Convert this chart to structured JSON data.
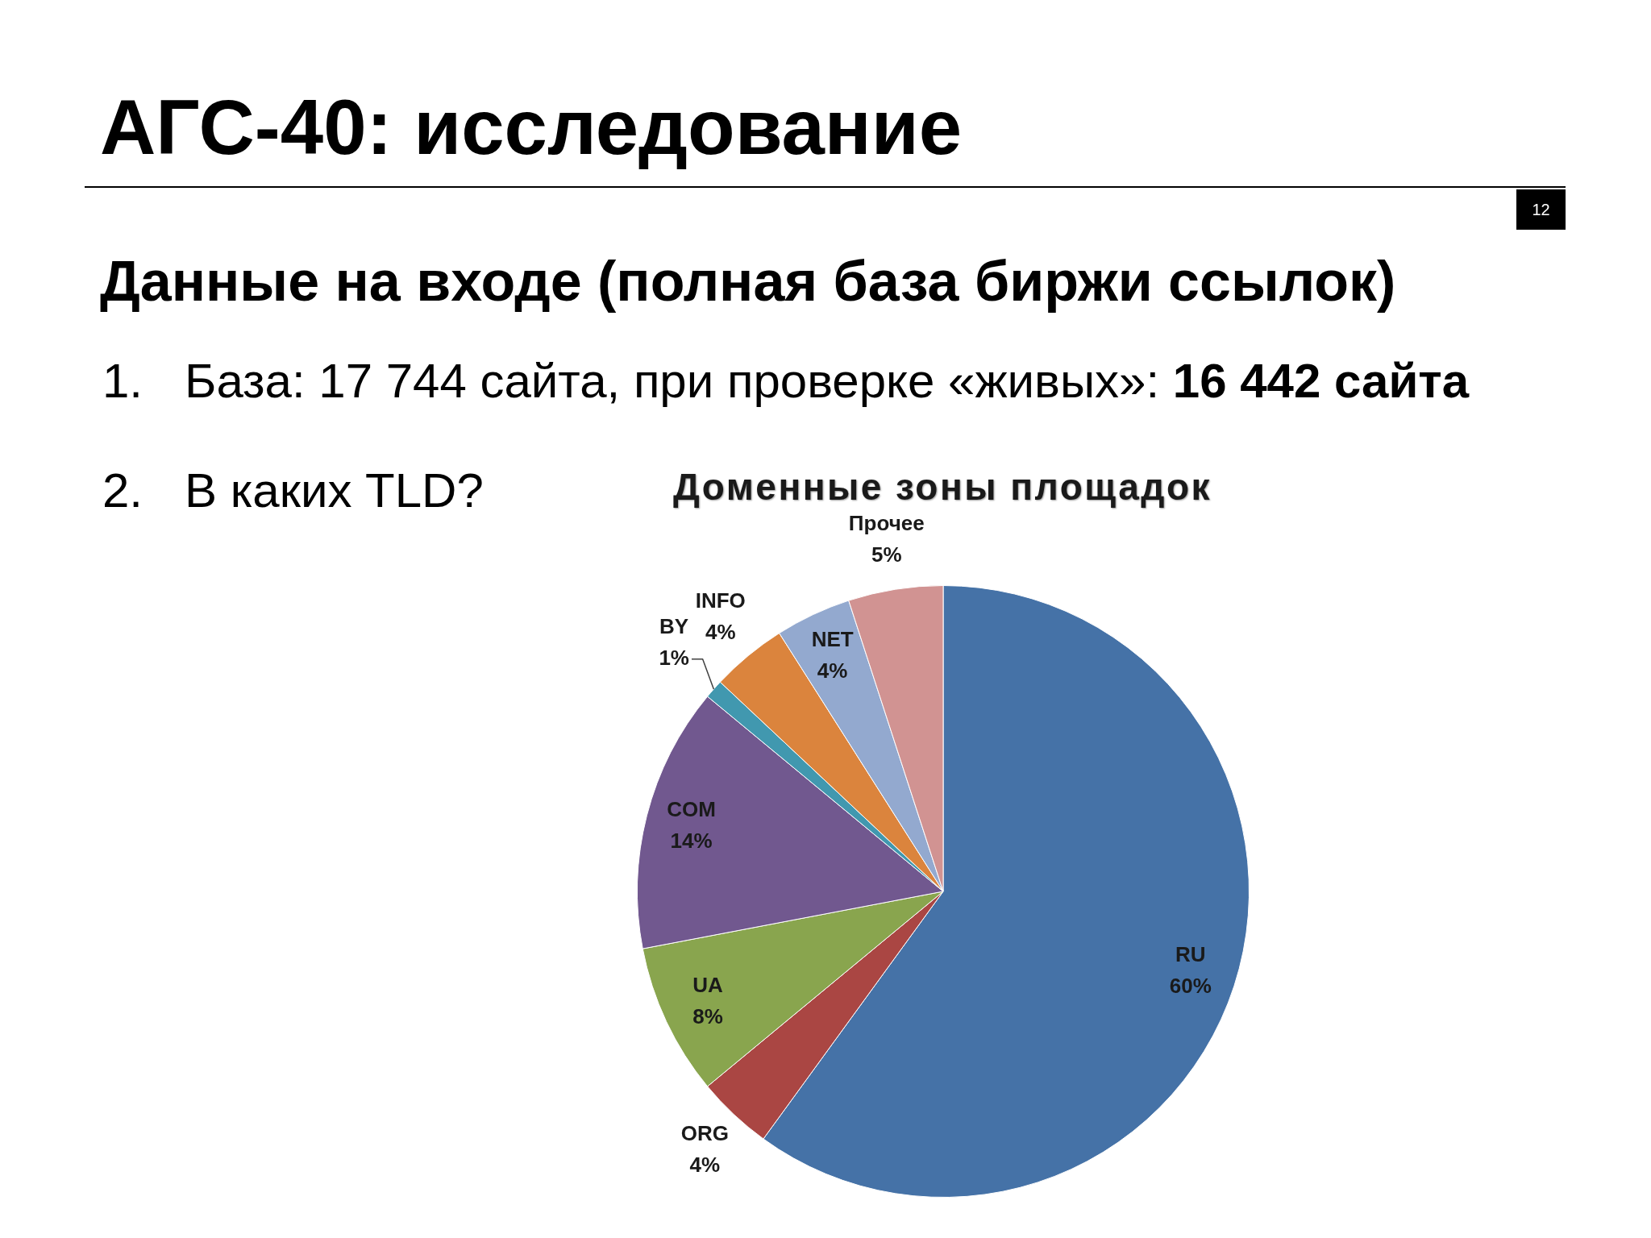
{
  "chart_data": {
    "type": "pie",
    "title": "Доменные зоны площадок",
    "categories": [
      "RU",
      "ORG",
      "UA",
      "COM",
      "BY",
      "INFO",
      "NET",
      "Прочее"
    ],
    "values": [
      60,
      4,
      8,
      14,
      1,
      4,
      4,
      5
    ],
    "colors": [
      "#4572a7",
      "#aa4643",
      "#89a54e",
      "#71588f",
      "#4198af",
      "#db843d",
      "#93a9cf",
      "#d19392"
    ],
    "value_labels": [
      "60%",
      "4%",
      "8%",
      "14%",
      "1%",
      "4%",
      "4%",
      "5%"
    ],
    "legend": false,
    "annotations": [
      "АГС-40: исследование",
      "Данные на входе (полная база биржи ссылок)",
      "1. База: 17 744 сайта, при проверке «живых»:",
      "16 442 сайта",
      "2. В каких TLD?",
      "12"
    ]
  }
}
